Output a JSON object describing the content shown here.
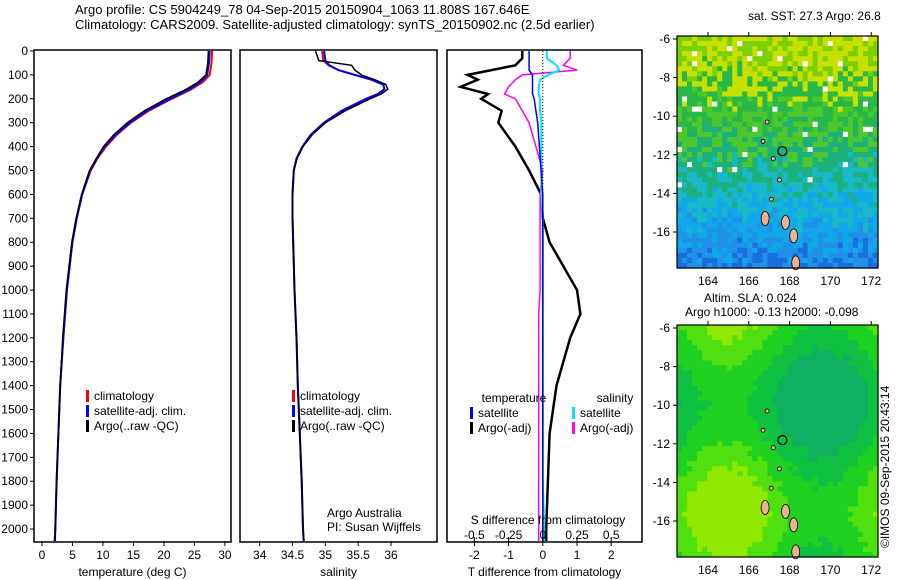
{
  "header": {
    "line1": "Argo profile: CS 5904249_78 04-Sep-2015 20150904_1063 11.808S 167.646E",
    "line2": "Climatology: CARS2009. Satellite-adjusted climatology: synTS_20150902.nc (2.5d earlier)"
  },
  "side_label": "©IMOS 09-Sep-2015 20:43:14",
  "credit": {
    "line1": "Argo Australia",
    "line2": "PI: Susan Wijffels"
  },
  "colors": {
    "climatology": "#ff0000",
    "satellite": "#0000ff",
    "argo": "#000000",
    "sal_sat": "#00e5ff",
    "sal_argo": "#ff00ff"
  },
  "chart_data": [
    {
      "type": "line",
      "id": "temperature",
      "xlabel": "temperature (deg C)",
      "xlim": [
        -1.3,
        31
      ],
      "ylim": [
        0,
        2050
      ],
      "xticks": [
        0,
        5,
        10,
        15,
        20,
        25,
        30
      ],
      "yticks": [
        0,
        100,
        200,
        300,
        400,
        500,
        600,
        700,
        800,
        900,
        1000,
        1100,
        1200,
        1300,
        1400,
        1500,
        1600,
        1700,
        1800,
        1900,
        2000
      ],
      "depth": [
        0,
        50,
        100,
        130,
        160,
        200,
        250,
        300,
        350,
        400,
        450,
        500,
        600,
        700,
        800,
        1000,
        1200,
        1400,
        1600,
        1800,
        2000,
        2050
      ],
      "legend": [
        "climatology",
        "satellite-adj. clim.",
        "Argo(..raw -QC)"
      ],
      "series": [
        {
          "name": "climatology",
          "values": [
            27.9,
            27.8,
            27.5,
            26.4,
            24.5,
            21.3,
            17.5,
            14.6,
            12.3,
            10.5,
            9.1,
            8.0,
            6.6,
            5.7,
            5.0,
            4.1,
            3.5,
            3.0,
            2.7,
            2.4,
            2.2,
            2.1
          ]
        },
        {
          "name": "satellite-adj. clim.",
          "values": [
            27.5,
            27.4,
            27.1,
            26.0,
            24.2,
            21.0,
            17.2,
            14.4,
            12.1,
            10.3,
            9.0,
            7.9,
            6.6,
            5.7,
            5.0,
            4.1,
            3.5,
            3.0,
            2.7,
            2.4,
            2.2,
            2.1
          ]
        },
        {
          "name": "Argo(..raw -QC)",
          "values": [
            27.3,
            27.2,
            26.9,
            25.6,
            23.7,
            20.4,
            16.8,
            14.0,
            11.8,
            10.1,
            8.9,
            7.8,
            6.5,
            5.6,
            4.9,
            4.0,
            3.4,
            3.0,
            2.7,
            2.4,
            2.2,
            2.2
          ]
        }
      ]
    },
    {
      "type": "line",
      "id": "salinity",
      "xlabel": "salinity",
      "xlim": [
        33.7,
        36.7
      ],
      "ylim": [
        0,
        2050
      ],
      "xticks": [
        34,
        34.5,
        35,
        35.5,
        36
      ],
      "depth": [
        0,
        40,
        60,
        80,
        100,
        120,
        140,
        160,
        180,
        200,
        250,
        300,
        350,
        400,
        450,
        500,
        600,
        700,
        800,
        1000,
        1200,
        1400,
        1600,
        1800,
        2000,
        2050
      ],
      "legend": [
        "climatology",
        "satellite-adj. clim.",
        "Argo(..raw -QC)"
      ],
      "series": [
        {
          "name": "climatology",
          "values": [
            34.95,
            34.97,
            35.05,
            35.2,
            35.45,
            35.7,
            35.88,
            35.9,
            35.8,
            35.62,
            35.25,
            34.98,
            34.78,
            34.65,
            34.56,
            34.52,
            34.5,
            34.5,
            34.51,
            34.53,
            34.56,
            34.58,
            34.61,
            34.64,
            34.66,
            34.67
          ]
        },
        {
          "name": "satellite-adj. clim.",
          "values": [
            34.98,
            35.0,
            35.06,
            35.2,
            35.45,
            35.7,
            35.88,
            35.9,
            35.8,
            35.62,
            35.25,
            34.98,
            34.78,
            34.65,
            34.56,
            34.52,
            34.5,
            34.5,
            34.51,
            34.53,
            34.56,
            34.58,
            34.61,
            34.64,
            34.66,
            34.67
          ]
        },
        {
          "name": "Argo(..raw -QC)",
          "values": [
            34.85,
            34.9,
            35.4,
            35.45,
            35.55,
            35.75,
            35.92,
            35.95,
            35.85,
            35.68,
            35.3,
            35.0,
            34.8,
            34.66,
            34.57,
            34.52,
            34.5,
            34.5,
            34.51,
            34.53,
            34.56,
            34.58,
            34.61,
            34.64,
            34.66,
            34.67
          ]
        }
      ]
    },
    {
      "type": "line",
      "id": "difference",
      "xlabel": "T difference from climatology",
      "xlabel2": "S difference from climatology",
      "xlim": [
        -2.8,
        2.9
      ],
      "xticks": [
        -2,
        -1,
        0,
        1,
        2
      ],
      "x2ticks": [
        -0.5,
        -0.25,
        0,
        0.25,
        0.5
      ],
      "x2ticklabels": [
        "-0.5",
        "-0.25",
        "0",
        "0.25",
        "0.5"
      ],
      "ylim": [
        0,
        2050
      ],
      "depth": [
        0,
        30,
        60,
        80,
        100,
        120,
        150,
        180,
        200,
        250,
        300,
        400,
        500,
        600,
        700,
        800,
        900,
        1000,
        1100,
        1200,
        1400,
        1600,
        1800,
        2000,
        2050
      ],
      "legend_titles": [
        "temperature",
        "salinity"
      ],
      "legend": [
        "satellite",
        "Argo(-adj)",
        "satellite",
        "Argo(-adj)"
      ],
      "series": [
        {
          "name": "T satellite",
          "values": [
            -0.4,
            -0.4,
            -0.4,
            -0.4,
            -0.3,
            -0.3,
            -0.3,
            -0.3,
            -0.25,
            -0.2,
            -0.15,
            -0.1,
            -0.05,
            0,
            0,
            0,
            0,
            0,
            0,
            0,
            0,
            0,
            0,
            0,
            0
          ]
        },
        {
          "name": "T Argo(-adj)",
          "values": [
            -0.6,
            -0.6,
            -0.8,
            -1.5,
            -2.2,
            -1.9,
            -2.4,
            -1.6,
            -1.8,
            -1.2,
            -1.3,
            -0.8,
            -0.4,
            -0.05,
            0.0,
            0.2,
            0.6,
            1.0,
            1.1,
            0.8,
            0.4,
            0.2,
            0.15,
            0.1,
            0.1
          ]
        },
        {
          "name": "S satellite",
          "values": [
            0.03,
            0.03,
            0.1,
            0.12,
            0.04,
            -0.02,
            -0.03,
            -0.03,
            -0.02,
            -0.02,
            -0.01,
            -0.01,
            -0.01,
            -0.01,
            0,
            0,
            0,
            0,
            0,
            0,
            0,
            0,
            0,
            0.01,
            0.01
          ]
        },
        {
          "name": "S Argo(-adj)",
          "values": [
            0.2,
            0.2,
            0.15,
            0.25,
            -0.15,
            -0.2,
            -0.25,
            -0.28,
            -0.2,
            -0.15,
            -0.1,
            -0.05,
            0,
            -0.02,
            -0.02,
            -0.02,
            -0.02,
            -0.02,
            -0.03,
            -0.03,
            -0.03,
            -0.03,
            -0.03,
            -0.03,
            -0.03
          ]
        }
      ]
    }
  ],
  "maps": [
    {
      "title": "sat. SST: 27.3 Argo: 26.8",
      "lat_ticks": [
        "-6",
        "-8",
        "-10",
        "-12",
        "-14",
        "-16"
      ],
      "lon_ticks": [
        "164",
        "166",
        "168",
        "170",
        "172"
      ]
    },
    {
      "title1": "Altim. SLA: 0.024",
      "title2": "Argo h1000: -0.13 h2000: -0.098",
      "lat_ticks": [
        "-6",
        "-8",
        "-10",
        "-12",
        "-14",
        "-16"
      ],
      "lon_ticks": [
        "164",
        "166",
        "168",
        "170",
        "172"
      ]
    }
  ]
}
